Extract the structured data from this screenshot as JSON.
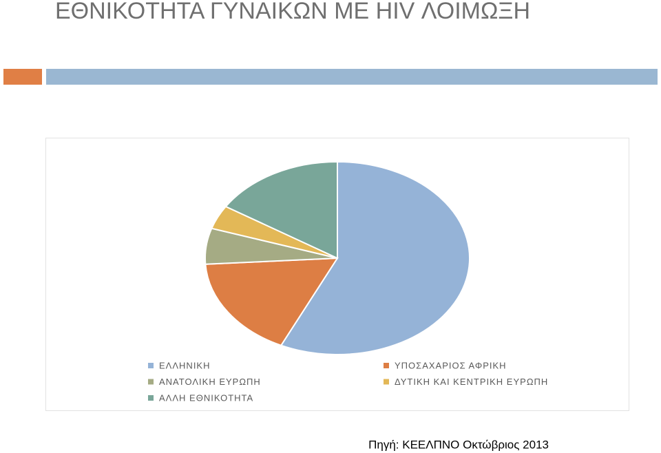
{
  "chart_data": {
    "type": "pie",
    "title": "ΕΘΝΙΚΟΤΗΤΑ ΓΥΝΑΙΚΩΝ ΜΕ HIV ΛΟΙΜΩΞΗ",
    "categories": [
      "ΕΛΛΗΝΙΚΗ",
      "ΥΠΟΣΑΧΑΡΙΟΣ ΑΦΡΙΚΗ",
      "ΑΝΑΤΟΛΙΚΗ ΕΥΡΩΠΗ",
      "ΔΥΤΙΚΗ ΚΑΙ ΚΕΝΤΡΙΚΗ ΕΥΡΩΠΗ",
      "ΑΛΛΗ ΕΘΝΙΚΟΤΗΤΑ"
    ],
    "values": [
      57,
      17,
      6,
      4,
      16
    ],
    "colors": [
      "#95b3d7",
      "#dd7e44",
      "#a5ab84",
      "#e3b857",
      "#79a699"
    ],
    "source": "Πηγή: ΚΕΕΛΠΝΟ  Οκτώβριος 2013"
  }
}
